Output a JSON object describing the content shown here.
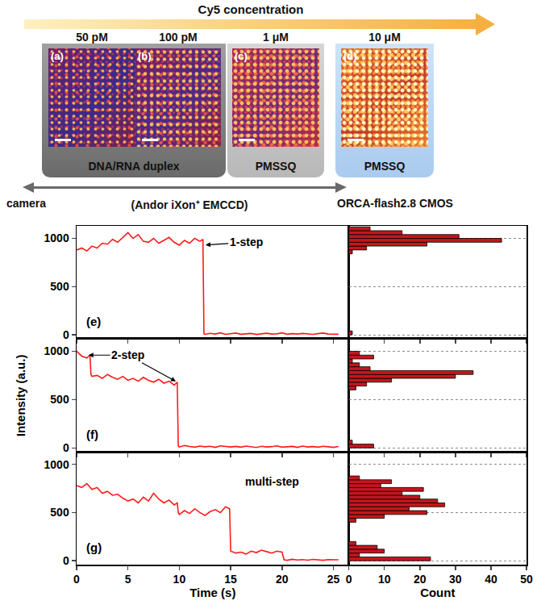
{
  "header": {
    "arrow_label": "Cy5 concentration",
    "groups": [
      {
        "label": "DNA/RNA duplex",
        "panels": [
          {
            "letter": "(a)",
            "concentration": "50 pM"
          },
          {
            "letter": "(b)",
            "concentration": "100 pM"
          }
        ]
      },
      {
        "label": "PMSSQ",
        "panels": [
          {
            "letter": "(c)",
            "concentration": "1 μM"
          }
        ]
      },
      {
        "label": "PMSSQ",
        "panels": [
          {
            "letter": "(d)",
            "concentration": "10 μM"
          }
        ]
      }
    ],
    "camera_label": "camera",
    "cameras": [
      {
        "label": "(Andor iXon⁺ EMCCD)"
      },
      {
        "label": "ORCA-flash2.8 CMOS"
      }
    ]
  },
  "chart_data": [
    {
      "type": "line",
      "panel": "(e)",
      "color": "#ff1a1a",
      "tick_labels": "y",
      "x": [
        0,
        0.5,
        1,
        1.5,
        2,
        2.5,
        3,
        3.5,
        4,
        4.5,
        5,
        5.5,
        6,
        6.5,
        7,
        7.5,
        8,
        8.5,
        9,
        9.5,
        10,
        10.5,
        11,
        11.5,
        12,
        12.3,
        12.4,
        12.5,
        13,
        13.5,
        14,
        14.5,
        15,
        15.5,
        16,
        16.5,
        17,
        17.5,
        18,
        18.5,
        19,
        19.5,
        20,
        20.5,
        21,
        21.5,
        22,
        22.5,
        23,
        23.5,
        24,
        24.5,
        25,
        25.5
      ],
      "values": [
        880,
        900,
        870,
        920,
        900,
        950,
        940,
        990,
        960,
        1010,
        1060,
        1000,
        1040,
        970,
        960,
        1000,
        950,
        980,
        1010,
        960,
        930,
        980,
        950,
        1000,
        970,
        990,
        10,
        5,
        15,
        8,
        20,
        5,
        12,
        18,
        6,
        10,
        14,
        4,
        12,
        16,
        8,
        10,
        20,
        6,
        12,
        8,
        14,
        10,
        5,
        12,
        18,
        8,
        10,
        6
      ],
      "xlim": [
        0,
        26.5
      ],
      "xticks": [
        0,
        5,
        10,
        15,
        20,
        25
      ],
      "ylim": [
        -40,
        1130
      ],
      "yticks": [
        0,
        500,
        1000
      ],
      "annotations": [
        {
          "text": "1-step",
          "x": 16.5,
          "y": 960,
          "arrows_to": [
            [
              12.4,
              930
            ]
          ]
        }
      ]
    },
    {
      "type": "histogram",
      "orientation": "horizontal",
      "color": "#c4161c",
      "tick_labels": false,
      "grid": true,
      "bins": [
        0,
        40,
        80,
        120,
        160,
        200,
        240,
        280,
        320,
        360,
        400,
        440,
        480,
        520,
        560,
        600,
        640,
        680,
        720,
        760,
        800,
        840,
        880,
        920,
        960,
        1000,
        1040,
        1080,
        1120
      ],
      "values": [
        1,
        0,
        0,
        0,
        0,
        0,
        0,
        0,
        0,
        0,
        0,
        0,
        0,
        0,
        0,
        0,
        0,
        0,
        0,
        0,
        0,
        1,
        5,
        22,
        43,
        31,
        15,
        6
      ],
      "xlim": [
        0,
        50
      ],
      "xticks": [
        0,
        10,
        20,
        30,
        40,
        50
      ],
      "ylim": [
        -40,
        1130
      ],
      "yticks": [
        0,
        500,
        1000
      ]
    },
    {
      "type": "line",
      "panel": "(f)",
      "color": "#ff1a1a",
      "tick_labels": "y",
      "y_label": "Intensity (a.u.)",
      "x": [
        0,
        0.5,
        1,
        1.3,
        1.4,
        1.5,
        2,
        2.5,
        3,
        3.5,
        4,
        4.5,
        5,
        5.5,
        6,
        6.5,
        7,
        7.5,
        8,
        8.5,
        9,
        9.5,
        9.8,
        9.9,
        10,
        10.5,
        11,
        11.5,
        12,
        12.5,
        13,
        13.5,
        14,
        14.5,
        15,
        15.5,
        16,
        16.5,
        17,
        17.5,
        18,
        18.5,
        19,
        19.5,
        20,
        20.5,
        21,
        21.5,
        22,
        22.5,
        23,
        23.5,
        24,
        24.5,
        25,
        25.5
      ],
      "values": [
        1000,
        950,
        930,
        960,
        760,
        740,
        750,
        720,
        760,
        730,
        710,
        740,
        700,
        720,
        690,
        730,
        700,
        680,
        710,
        670,
        690,
        650,
        680,
        20,
        10,
        25,
        15,
        8,
        20,
        12,
        18,
        6,
        22,
        14,
        10,
        16,
        8,
        20,
        12,
        5,
        18,
        10,
        14,
        22,
        8,
        12,
        16,
        6,
        20,
        10,
        14,
        8,
        18,
        12,
        6,
        15
      ],
      "xlim": [
        0,
        26.5
      ],
      "xticks": [
        0,
        5,
        10,
        15,
        20,
        25
      ],
      "ylim": [
        -40,
        1130
      ],
      "yticks": [
        0,
        500,
        1000
      ],
      "annotations": [
        {
          "text": "2-step",
          "x": 5,
          "y": 960,
          "arrows_to": [
            [
              1,
              960
            ],
            [
              9.8,
              680
            ]
          ]
        }
      ]
    },
    {
      "type": "histogram",
      "orientation": "horizontal",
      "color": "#c4161c",
      "tick_labels": false,
      "grid": true,
      "bins": [
        0,
        40,
        80,
        120,
        160,
        200,
        240,
        280,
        320,
        360,
        400,
        440,
        480,
        520,
        560,
        600,
        640,
        680,
        720,
        760,
        800,
        840,
        880,
        920,
        960,
        1000,
        1040,
        1080,
        1120
      ],
      "values": [
        7,
        1,
        0,
        0,
        0,
        0,
        0,
        0,
        0,
        0,
        0,
        0,
        0,
        0,
        0,
        2,
        5,
        12,
        30,
        35,
        6,
        3,
        1,
        7,
        3,
        0,
        0,
        0
      ],
      "xlim": [
        0,
        50
      ],
      "xticks": [
        0,
        10,
        20,
        30,
        40,
        50
      ],
      "ylim": [
        -40,
        1130
      ],
      "yticks": [
        0,
        500,
        1000
      ]
    },
    {
      "type": "line",
      "panel": "(g)",
      "color": "#ff1a1a",
      "x_label": "Time (s)",
      "x": [
        0,
        0.5,
        1,
        1.5,
        2,
        2.5,
        3,
        3.5,
        4,
        4.5,
        5,
        5.5,
        6,
        6.5,
        7,
        7.5,
        8,
        8.5,
        9,
        9.5,
        9.8,
        9.9,
        10,
        10.5,
        11,
        11.5,
        12,
        12.5,
        13,
        13.5,
        14,
        14.5,
        14.9,
        15,
        15.5,
        16,
        16.5,
        17,
        17.5,
        18,
        18.5,
        19,
        19.5,
        20,
        20.2,
        20.5,
        21,
        21.5,
        22,
        22.5,
        23,
        23.5,
        24,
        24.5,
        25,
        25.5
      ],
      "values": [
        780,
        760,
        800,
        740,
        760,
        700,
        720,
        680,
        690,
        650,
        620,
        640,
        600,
        660,
        620,
        700,
        640,
        600,
        630,
        580,
        600,
        500,
        480,
        520,
        490,
        540,
        500,
        470,
        510,
        530,
        500,
        560,
        540,
        100,
        80,
        90,
        70,
        100,
        85,
        110,
        95,
        80,
        100,
        90,
        10,
        5,
        15,
        8,
        12,
        6,
        14,
        10,
        5,
        12,
        8,
        10
      ],
      "xlim": [
        0,
        26.5
      ],
      "xticks": [
        0,
        5,
        10,
        15,
        20,
        25
      ],
      "ylim": [
        -40,
        1130
      ],
      "yticks": [
        0,
        500,
        1000
      ],
      "annotations": [
        {
          "text": "multi-step",
          "x": 19,
          "y": 820
        }
      ]
    },
    {
      "type": "histogram",
      "orientation": "horizontal",
      "color": "#c4161c",
      "tick_labels": "x",
      "grid": true,
      "x_label": "Count",
      "bins": [
        0,
        40,
        80,
        120,
        160,
        200,
        240,
        280,
        320,
        360,
        400,
        440,
        480,
        520,
        560,
        600,
        640,
        680,
        720,
        760,
        800,
        840,
        880,
        920,
        960,
        1000,
        1040,
        1080,
        1120
      ],
      "values": [
        23,
        3,
        10,
        8,
        2,
        0,
        0,
        0,
        0,
        0,
        2,
        10,
        22,
        17,
        27,
        25,
        20,
        15,
        21,
        9,
        12,
        3,
        0,
        0,
        0,
        0,
        0,
        0
      ],
      "xlim": [
        0,
        50
      ],
      "xticks": [
        0,
        10,
        20,
        30,
        40,
        50
      ],
      "ylim": [
        -40,
        1130
      ],
      "yticks": [
        0,
        500,
        1000
      ]
    }
  ]
}
